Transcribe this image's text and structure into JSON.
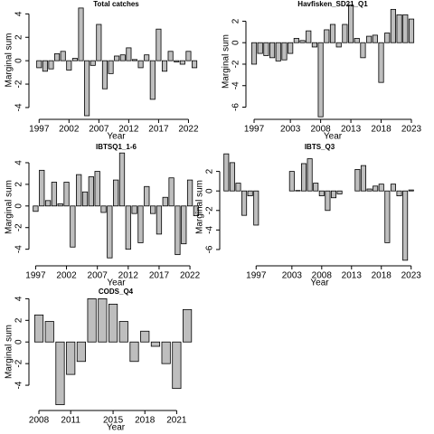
{
  "chart_data": [
    {
      "type": "bar",
      "title": "Total catches",
      "xlabel": "Year",
      "ylabel": "Marginal sum",
      "color": "#bebebe",
      "x": [
        1997,
        1998,
        1999,
        2000,
        2001,
        2002,
        2003,
        2004,
        2005,
        2006,
        2007,
        2008,
        2009,
        2010,
        2011,
        2012,
        2013,
        2014,
        2015,
        2016,
        2017,
        2018,
        2019,
        2020,
        2021,
        2022,
        2023
      ],
      "values": [
        -0.6,
        -0.9,
        -0.7,
        0.6,
        0.8,
        -0.8,
        0.2,
        4.5,
        -4.7,
        -0.4,
        3.1,
        -2.4,
        -1.1,
        0.4,
        0.5,
        1.1,
        0.1,
        -0.6,
        0.5,
        -3.3,
        2.7,
        -0.9,
        0.8,
        -0.1,
        -0.3,
        0.8,
        -0.6
      ],
      "xlim": [
        1995.9,
        2023.9
      ],
      "ylim": [
        -4.7,
        4.8
      ],
      "xticks": [
        1997,
        2002,
        2007,
        2012,
        2017,
        2022
      ],
      "yticks": [
        -4,
        -2,
        0,
        2,
        4
      ]
    },
    {
      "type": "bar",
      "title": "Havfisken_SD21_Q1",
      "xlabel": "Year",
      "ylabel": "Marginal sum",
      "color": "#bebebe",
      "x": [
        1997,
        1998,
        1999,
        2000,
        2001,
        2002,
        2003,
        2004,
        2005,
        2006,
        2007,
        2008,
        2009,
        2010,
        2011,
        2012,
        2013,
        2014,
        2015,
        2016,
        2017,
        2018,
        2019,
        2020,
        2021,
        2022,
        2023
      ],
      "values": [
        -2.0,
        -1.0,
        -1.2,
        -1.4,
        -1.7,
        -1.6,
        -1.0,
        0.4,
        0.2,
        1.1,
        -0.4,
        -6.9,
        1.2,
        1.7,
        -0.4,
        1.7,
        3.5,
        0.4,
        -1.4,
        0.6,
        0.7,
        -3.7,
        0.9,
        3.1,
        2.6,
        2.6,
        2.2
      ],
      "xlim": [
        1996.25,
        2023.75
      ],
      "ylim": [
        -6.8,
        3.3
      ],
      "xticks": [
        1997,
        2003,
        2008,
        2013,
        2018,
        2023
      ],
      "yticks": [
        -6,
        -4,
        -2,
        0,
        2
      ]
    },
    {
      "type": "bar",
      "title": "IBTSQ1_1-6",
      "xlabel": "Year",
      "ylabel": "Marginal sum",
      "color": "#bebebe",
      "x": [
        1997,
        1998,
        1999,
        2000,
        2001,
        2002,
        2003,
        2004,
        2005,
        2006,
        2007,
        2008,
        2009,
        2010,
        2011,
        2012,
        2013,
        2014,
        2015,
        2016,
        2017,
        2018,
        2019,
        2020,
        2021,
        2022,
        2023
      ],
      "values": [
        -0.5,
        3.3,
        0.5,
        2.2,
        0.2,
        2.2,
        -3.8,
        2.9,
        1.3,
        2.7,
        3.2,
        -0.6,
        -4.8,
        2.4,
        4.9,
        -4.0,
        -0.7,
        -3.4,
        1.8,
        -0.7,
        -2.6,
        0.8,
        2.6,
        -4.5,
        -3.5,
        2.4,
        -0.9
      ],
      "xlim": [
        1996.5,
        2023.6
      ],
      "ylim": [
        -5.2,
        5.0
      ],
      "xticks": [
        1997,
        2002,
        2007,
        2012,
        2017,
        2022
      ],
      "yticks": [
        -4,
        -2,
        0,
        2,
        4
      ]
    },
    {
      "type": "bar",
      "title": "IBTS_Q3",
      "xlabel": "Year",
      "ylabel": "Marginal sum",
      "color": "#bebebe",
      "x": [
        1992,
        1993,
        1994,
        1995,
        1996,
        1997,
        1998,
        1999,
        2000,
        2001,
        2002,
        2003,
        2004,
        2005,
        2006,
        2007,
        2008,
        2009,
        2010,
        2011,
        2012,
        2013,
        2014,
        2015,
        2016,
        2017,
        2018,
        2019,
        2020,
        2021,
        2022,
        2023
      ],
      "values": [
        3.8,
        2.9,
        0.8,
        -2.5,
        -0.5,
        -3.5,
        null,
        null,
        null,
        null,
        null,
        2.0,
        0.05,
        2.8,
        3.3,
        0.8,
        -0.5,
        -2.0,
        -0.7,
        -0.3,
        null,
        null,
        2.2,
        2.6,
        0.2,
        0.5,
        0.7,
        -5.3,
        0.7,
        -0.5,
        -7.1,
        0.1
      ],
      "xlim": [
        1991.5,
        2023.8
      ],
      "ylim": [
        -7.3,
        4.0
      ],
      "xticks": [
        1997,
        2003,
        2008,
        2013,
        2018,
        2023
      ],
      "yticks": [
        -6,
        -4,
        -2,
        0,
        2
      ]
    },
    {
      "type": "bar",
      "title": "CODS_Q4",
      "xlabel": "Year",
      "ylabel": "Marginal sum",
      "color": "#bebebe",
      "x": [
        2008,
        2009,
        2010,
        2011,
        2012,
        2013,
        2014,
        2015,
        2016,
        2017,
        2018,
        2019,
        2020,
        2021,
        2022
      ],
      "values": [
        2.5,
        1.9,
        -5.8,
        -3.0,
        -1.8,
        4.0,
        4.0,
        3.5,
        1.9,
        -1.8,
        1.0,
        -0.4,
        -2.0,
        -4.3,
        3.0
      ],
      "xlim": [
        2007.4,
        2023.1
      ],
      "ylim": [
        -6.0,
        4.2
      ],
      "xticks": [
        2008,
        2011,
        2015,
        2018,
        2021
      ],
      "yticks": [
        -4,
        -2,
        0,
        2,
        4
      ]
    }
  ]
}
